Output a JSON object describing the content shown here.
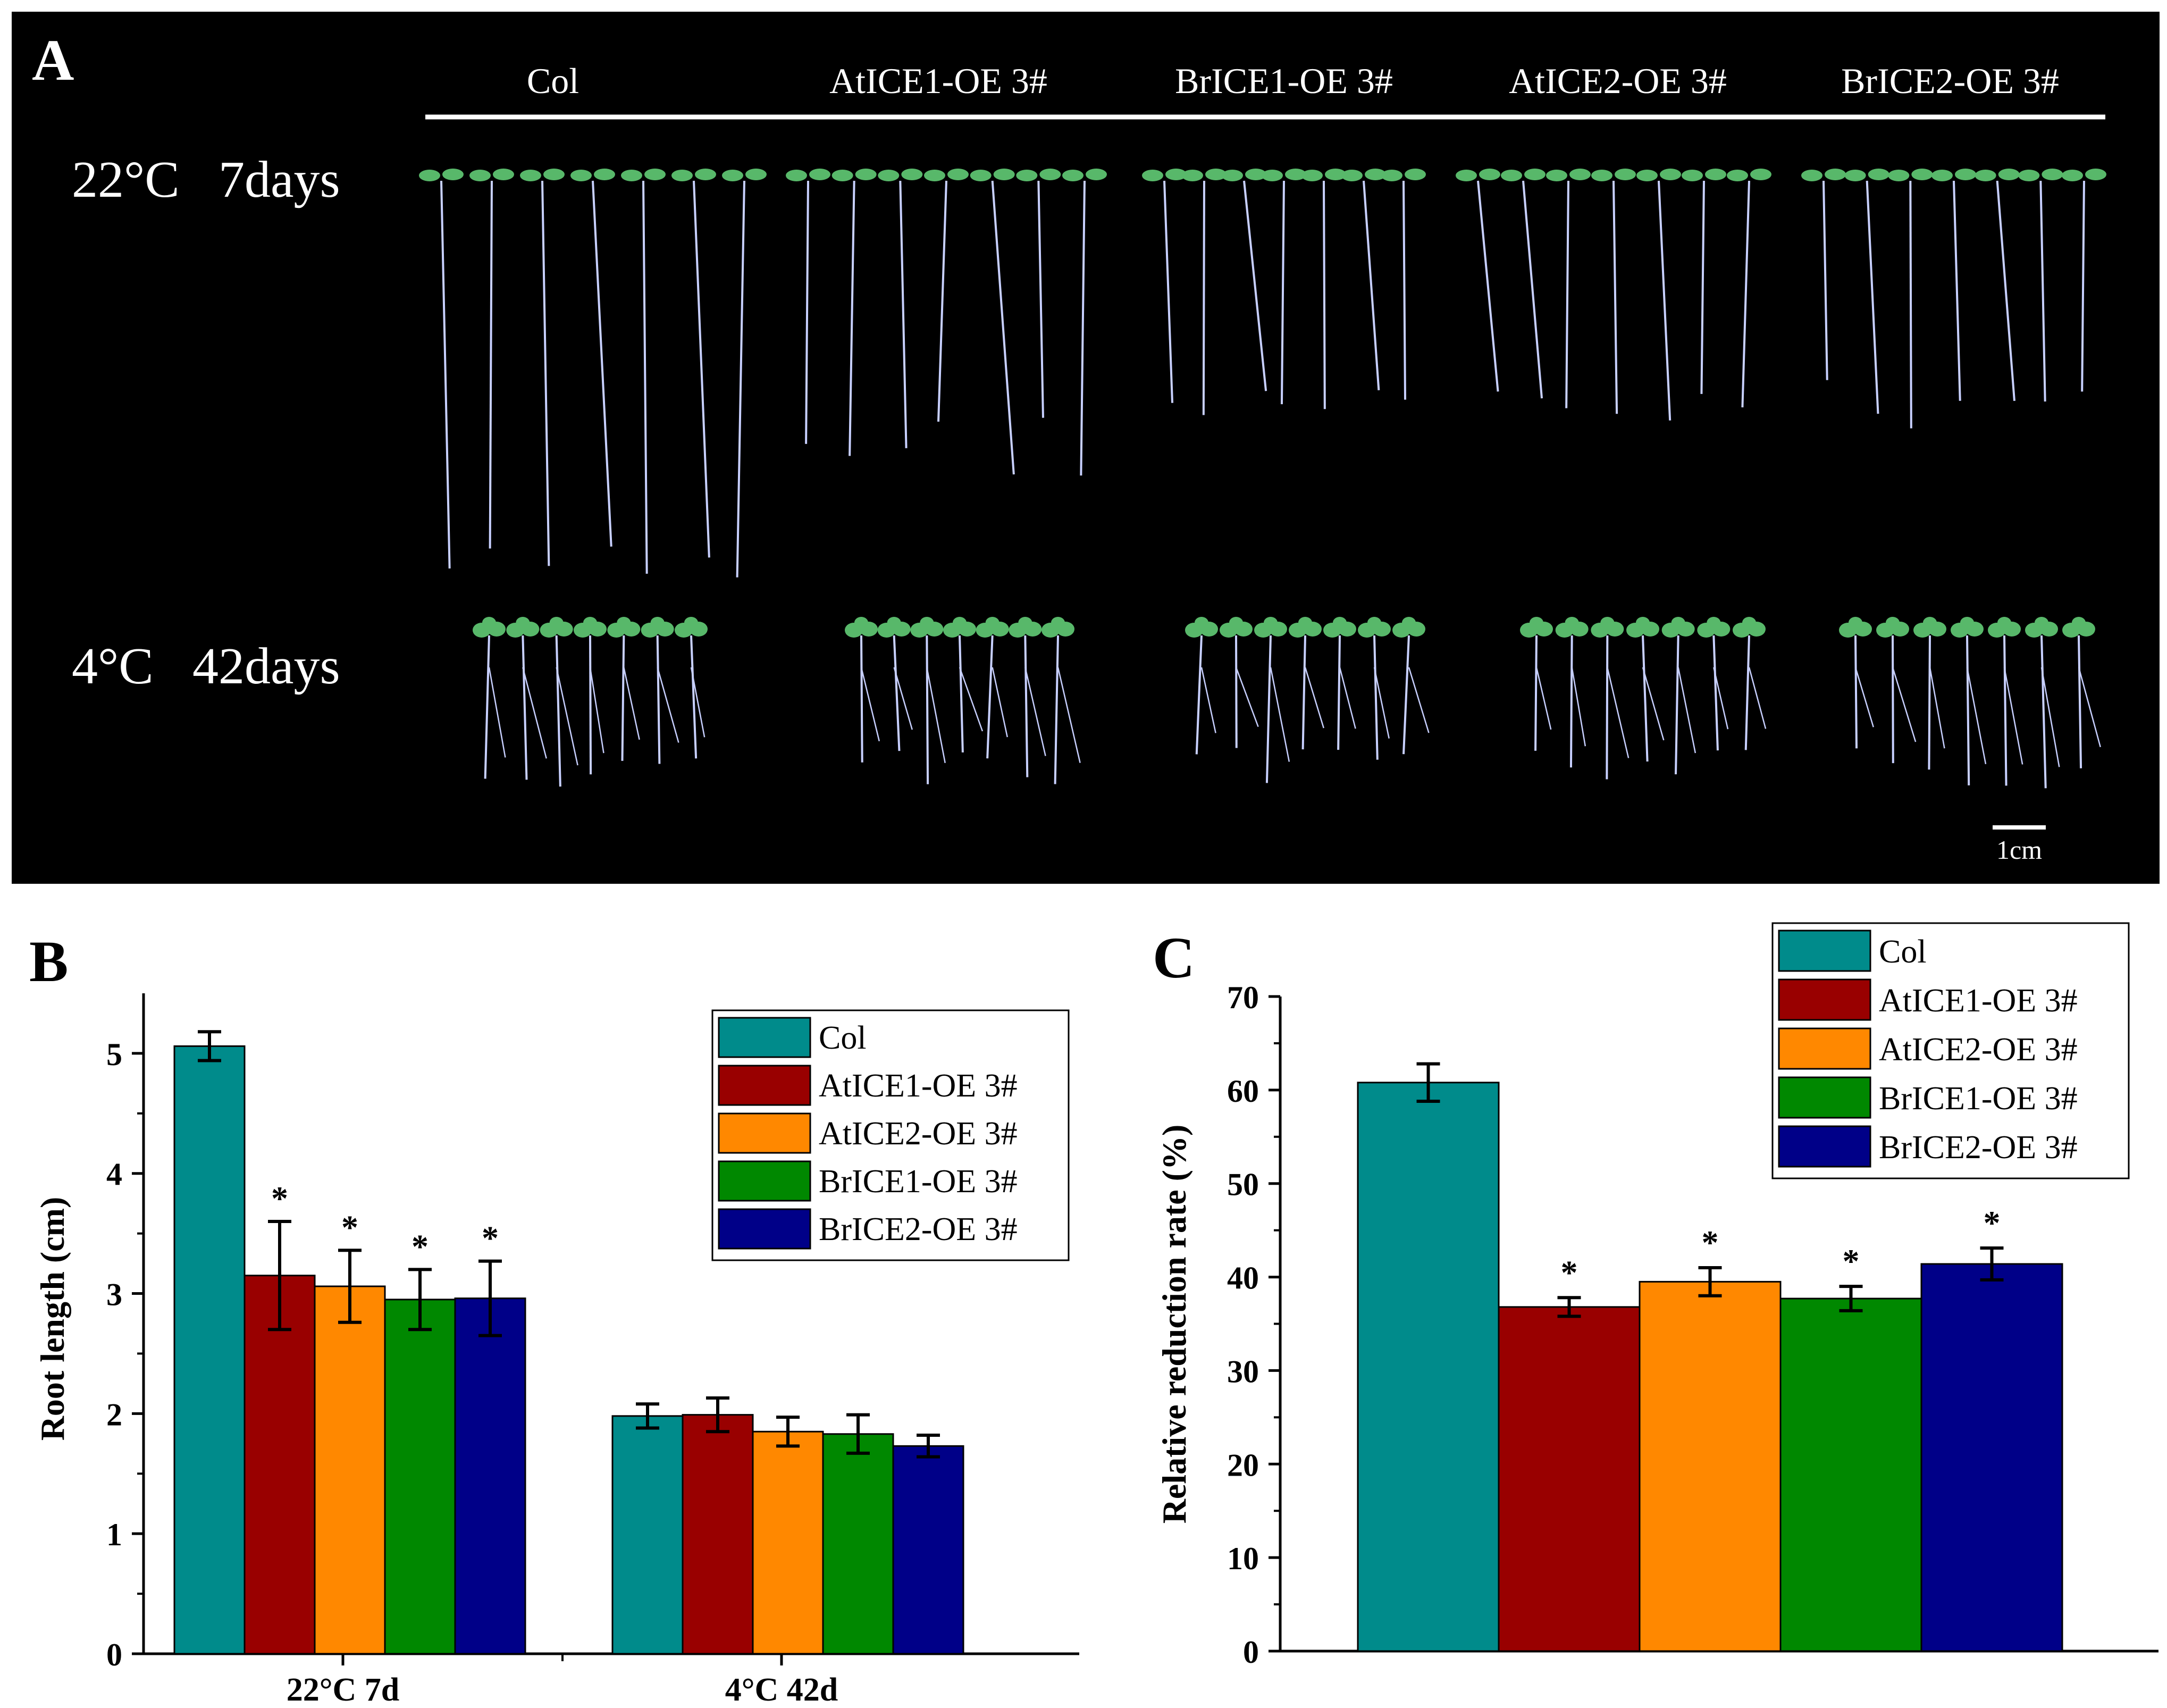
{
  "panel_a": {
    "label": "A",
    "columns": [
      "Col",
      "AtICE1-OE 3#",
      "BrICE1-OE 3#",
      "AtICE2-OE 3#",
      "BrICE2-OE 3#"
    ],
    "rows": [
      {
        "label": "22°C   7days",
        "plant_type": "long"
      },
      {
        "label": "4°C   42days",
        "plant_type": "short"
      }
    ],
    "scale_bar": "1cm",
    "colors": {
      "background": "#000000",
      "text": "#ffffff",
      "leaf": "#58b86a",
      "root": "#c8d0ff"
    }
  },
  "chart_data": [
    {
      "panel": "B",
      "type": "bar",
      "categories": [
        "22°C 7d",
        "4°C 42d"
      ],
      "ylabel": "Root length (cm)",
      "xlabel": "",
      "ylim": [
        0,
        5.5
      ],
      "yticks": [
        0,
        1,
        2,
        3,
        4,
        5
      ],
      "legend_position": "top-right",
      "series": [
        {
          "name": "Col",
          "color": "#008b8b",
          "values": [
            5.06,
            1.98
          ],
          "errors": [
            0.12,
            0.1
          ],
          "sig": [
            "",
            ""
          ]
        },
        {
          "name": "AtICE1-OE 3#",
          "color": "#990000",
          "values": [
            3.15,
            1.99
          ],
          "errors": [
            0.45,
            0.14
          ],
          "sig": [
            "*",
            ""
          ]
        },
        {
          "name": "AtICE2-OE 3#",
          "color": "#ff8800",
          "values": [
            3.06,
            1.85
          ],
          "errors": [
            0.3,
            0.12
          ],
          "sig": [
            "*",
            ""
          ]
        },
        {
          "name": "BrICE1-OE 3#",
          "color": "#008800",
          "values": [
            2.95,
            1.83
          ],
          "errors": [
            0.25,
            0.16
          ],
          "sig": [
            "*",
            ""
          ]
        },
        {
          "name": "BrICE2-OE 3#",
          "color": "#000088",
          "values": [
            2.96,
            1.73
          ],
          "errors": [
            0.31,
            0.09
          ],
          "sig": [
            "*",
            ""
          ]
        }
      ]
    },
    {
      "panel": "C",
      "type": "bar",
      "categories": [
        "Col",
        "AtICE1-OE 3#",
        "AtICE2-OE 3#",
        "BrICE1-OE 3#",
        "BrICE2-OE 3#"
      ],
      "ylabel": "Relative reduction rate (%)",
      "xlabel": "",
      "ylim": [
        0,
        70
      ],
      "yticks": [
        0,
        10,
        20,
        30,
        40,
        50,
        60,
        70
      ],
      "legend_position": "top-right",
      "series": [
        {
          "name": "Col",
          "color": "#008b8b",
          "value": 60.8,
          "error": 2.0,
          "sig": ""
        },
        {
          "name": "AtICE1-OE 3#",
          "color": "#990000",
          "value": 36.8,
          "error": 1.0,
          "sig": "*"
        },
        {
          "name": "AtICE2-OE 3#",
          "color": "#ff8800",
          "value": 39.5,
          "error": 1.5,
          "sig": "*"
        },
        {
          "name": "BrICE1-OE 3#",
          "color": "#008800",
          "value": 37.7,
          "error": 1.3,
          "sig": "*"
        },
        {
          "name": "BrICE2-OE 3#",
          "color": "#000088",
          "value": 41.4,
          "error": 1.7,
          "sig": "*"
        }
      ]
    }
  ]
}
